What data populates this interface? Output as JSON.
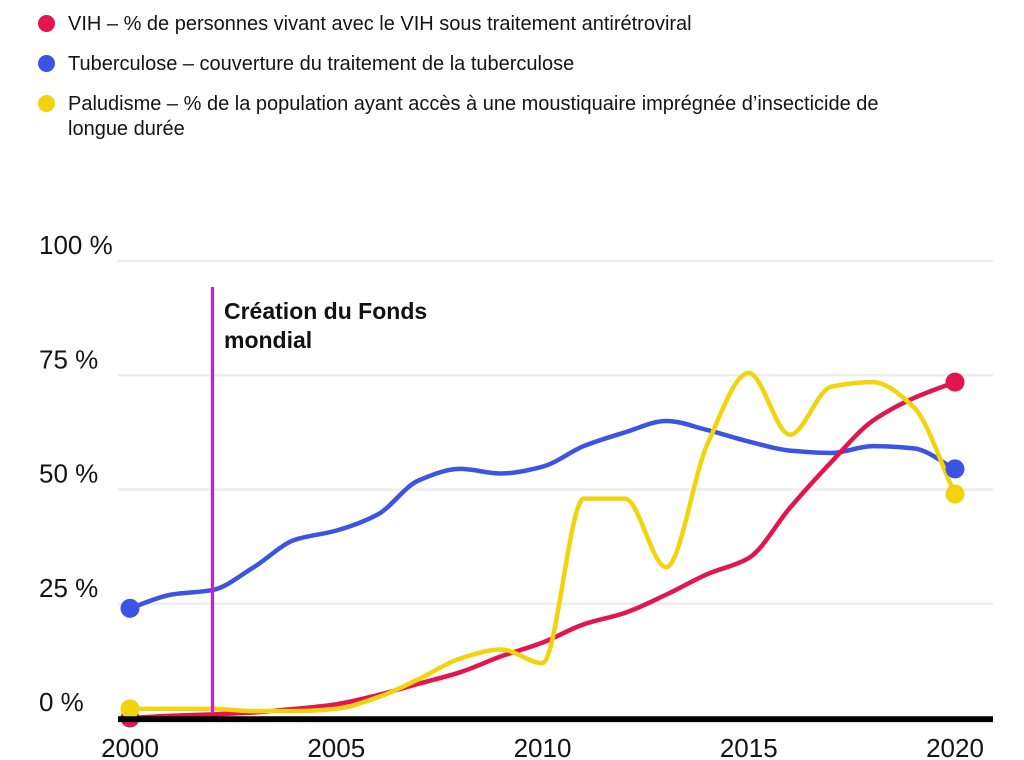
{
  "legend": {
    "items": [
      {
        "id": "vih",
        "label": "VIH – % de personnes vivant avec le VIH sous traitement antirétroviral",
        "color": "#e2164c"
      },
      {
        "id": "tuberculose",
        "label": "Tuberculose – couverture du traitement de la tuberculose",
        "color": "#3c54e4"
      },
      {
        "id": "paludisme",
        "label": "Paludisme – % de la population ayant accès à une moustiquaire imprégnée d’insecticide de longue durée",
        "color": "#f2d40e"
      }
    ]
  },
  "annotation": {
    "label": "Création du Fonds mondial",
    "year": 2002,
    "color": "#bf24d1"
  },
  "axes": {
    "y_ticks": [
      {
        "label": "100 %",
        "value": 100
      },
      {
        "label": "75 %",
        "value": 75
      },
      {
        "label": "50 %",
        "value": 50
      },
      {
        "label": "25 %",
        "value": 25
      },
      {
        "label": "0 %",
        "value": 0
      }
    ],
    "x_ticks": [
      {
        "label": "2000",
        "value": 2000
      },
      {
        "label": "2005",
        "value": 2005
      },
      {
        "label": "2010",
        "value": 2010
      },
      {
        "label": "2015",
        "value": 2015
      },
      {
        "label": "2020",
        "value": 2020
      }
    ]
  },
  "chart_data": {
    "type": "line",
    "title": "",
    "xlabel": "",
    "ylabel": "",
    "xlim": [
      2000,
      2020
    ],
    "ylim": [
      0,
      100
    ],
    "grid": "horizontal",
    "legend_position": "top-left",
    "unit": "%",
    "x": [
      2000,
      2001,
      2002,
      2003,
      2004,
      2005,
      2006,
      2007,
      2008,
      2009,
      2010,
      2011,
      2012,
      2013,
      2014,
      2015,
      2016,
      2017,
      2018,
      2019,
      2020
    ],
    "series": [
      {
        "name": "VIH – % de personnes vivant avec le VIH sous traitement antirétroviral",
        "short_name": "VIH",
        "color": "#e2164c",
        "endpoint_dots": [
          2000,
          2020
        ],
        "values": [
          0,
          0.5,
          0.8,
          1.2,
          2,
          3,
          5,
          7.5,
          10,
          13.5,
          16.5,
          20.5,
          23,
          27,
          31.5,
          35,
          46,
          56,
          65,
          70,
          73.5
        ]
      },
      {
        "name": "Tuberculose – couverture du traitement de la tuberculose",
        "short_name": "Tuberculose",
        "color": "#3c54e4",
        "endpoint_dots": [
          2000,
          2020
        ],
        "values": [
          24,
          27,
          28,
          33,
          39,
          41,
          44.5,
          52,
          54.5,
          53.5,
          55,
          59.5,
          62.5,
          65,
          63,
          60.5,
          58.5,
          58,
          59.5,
          59,
          54.5
        ]
      },
      {
        "name": "Paludisme – % de la population ayant accès à une moustiquaire imprégnée d’insecticide de longue durée",
        "short_name": "Paludisme",
        "color": "#f2d40e",
        "endpoint_dots": [
          2000,
          2020
        ],
        "values": [
          2,
          2,
          2,
          1.5,
          1.5,
          2,
          4.5,
          8.5,
          13,
          15,
          12,
          48,
          48,
          33,
          60,
          75.5,
          62,
          72.5,
          73.5,
          68,
          49
        ]
      }
    ],
    "annotation_line": {
      "year": 2002,
      "label": "Création du Fonds mondial"
    }
  },
  "style": {
    "gridline_color": "#ededed",
    "axis_color": "#000000",
    "text_color": "#141414"
  }
}
